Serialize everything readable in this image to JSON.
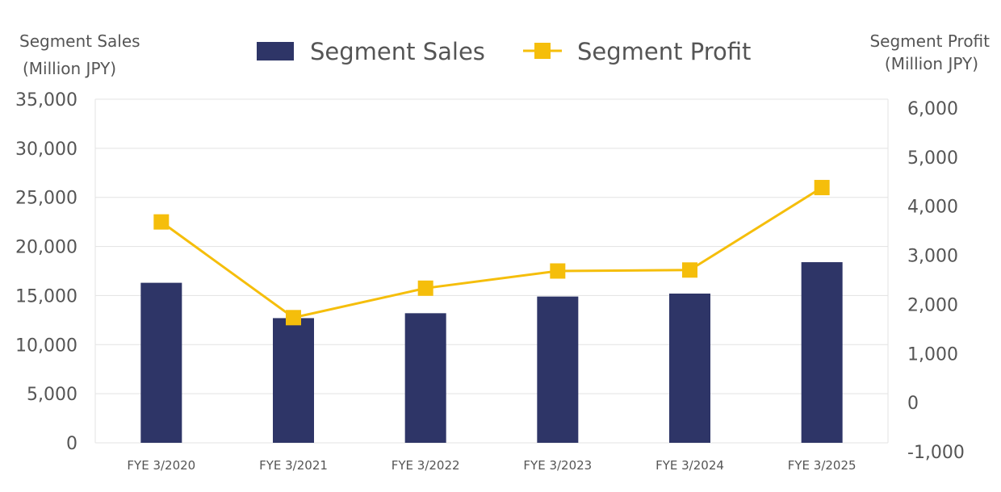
{
  "colors": {
    "sales": "#2E3567",
    "profit": "#F5BE0B",
    "grid": "#E3E3E3",
    "text": "#555555"
  },
  "legend": {
    "sales": "Segment Sales",
    "profit": "Segment Profit"
  },
  "axes": {
    "left_title_line1": "Segment Sales",
    "left_title_line2": "(Million JPY)",
    "right_title_line1": "Segment Profit",
    "right_title_line2": "(Million JPY)"
  },
  "chart_data": {
    "type": "bar",
    "categories": [
      "FYE 3/2020",
      "FYE 3/2021",
      "FYE 3/2022",
      "FYE 3/2023",
      "FYE 3/2024",
      "FYE 3/2025"
    ],
    "series": [
      {
        "name": "Segment Sales",
        "type": "bar",
        "axis": "left",
        "values": [
          16300,
          12700,
          13200,
          14900,
          15200,
          18400
        ]
      },
      {
        "name": "Segment Profit",
        "type": "line",
        "axis": "right",
        "marker": "square",
        "values": [
          3500,
          1550,
          2150,
          2500,
          2520,
          4200
        ]
      }
    ],
    "y_left": {
      "min": 0,
      "max": 35000,
      "ticks": [
        "0",
        "5,000",
        "10,000",
        "15,000",
        "20,000",
        "25,000",
        "30,000",
        "35,000"
      ]
    },
    "y_right": {
      "min": -1000,
      "max": 6000,
      "ticks": [
        "-1,000",
        "0",
        "1,000",
        "2,000",
        "3,000",
        "4,000",
        "5,000",
        "6,000"
      ]
    },
    "grid": true,
    "legend_position": "top-center"
  }
}
